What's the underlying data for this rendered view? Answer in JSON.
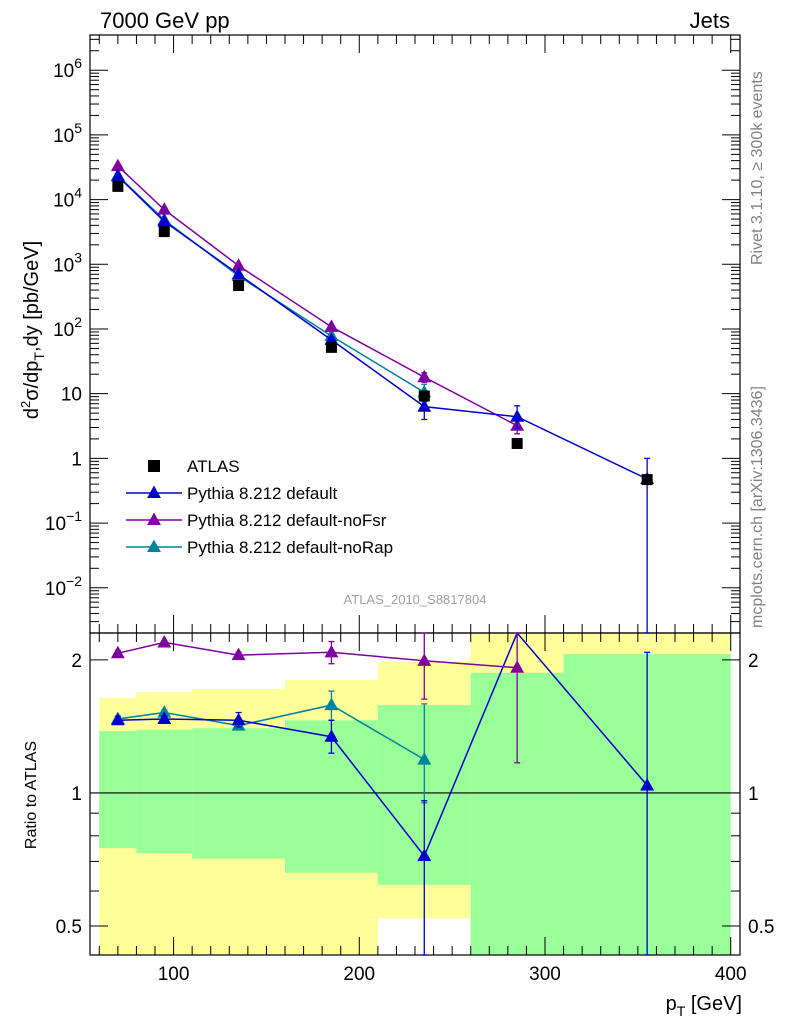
{
  "header": {
    "left": "7000 GeV pp",
    "right": "Jets"
  },
  "side_labels": {
    "rivet": "Rivet 3.1.10, ≥ 300k events",
    "mcplots": "mcplots.cern.ch [arXiv:1306.3436]"
  },
  "analysis_id": "ATLAS_2010_S8817804",
  "colors": {
    "atlas": "#000000",
    "default": "#0000cc",
    "noFsr": "#7f00a0",
    "noRap": "#00829b",
    "band_inner": "#99ff99",
    "band_outer": "#ffff99"
  },
  "chart_data": [
    {
      "type": "line",
      "panel": "main",
      "ylabel_parts": {
        "base": "d",
        "sup2": "2",
        "sigma": "σ/dp",
        "subT": "T",
        "rest": ",dy [pb/GeV]"
      },
      "yscale": "log",
      "ylim": [
        0.002,
        3500000
      ],
      "xlim": [
        55,
        405
      ],
      "y_tick_labels": [
        {
          "value": 0.01,
          "mantissa": "10",
          "exp": "−2"
        },
        {
          "value": 0.1,
          "mantissa": "10",
          "exp": "−1"
        },
        {
          "value": 1,
          "mantissa": "1",
          "exp": ""
        },
        {
          "value": 10,
          "mantissa": "10",
          "exp": ""
        },
        {
          "value": 100,
          "mantissa": "10",
          "exp": "2"
        },
        {
          "value": 1000,
          "mantissa": "10",
          "exp": "3"
        },
        {
          "value": 10000,
          "mantissa": "10",
          "exp": "4"
        },
        {
          "value": 100000,
          "mantissa": "10",
          "exp": "5"
        },
        {
          "value": 1000000,
          "mantissa": "10",
          "exp": "6"
        }
      ],
      "legend_position": "bottom-left",
      "series": [
        {
          "name": "ATLAS",
          "key": "atlas",
          "marker": "square",
          "x": [
            70,
            95,
            135,
            185,
            235,
            285,
            355
          ],
          "y": [
            16000,
            3200,
            470,
            52,
            9.2,
            1.7,
            0.47
          ]
        },
        {
          "name": "Pythia 8.212 default",
          "key": "default",
          "marker": "triangle",
          "x": [
            70,
            95,
            135,
            185,
            235,
            285,
            355
          ],
          "y": [
            23000,
            4600,
            700,
            68,
            6.3,
            4.4,
            0.48
          ],
          "err_low": [
            21000,
            4300,
            660,
            63,
            4.0,
            2.9,
            0.002
          ],
          "err_high": [
            25000,
            4900,
            740,
            73,
            9.0,
            6.5,
            1.0
          ]
        },
        {
          "name": "Pythia 8.212 default-noFsr",
          "key": "noFsr",
          "marker": "triangle",
          "x": [
            70,
            95,
            135,
            185,
            235,
            285
          ],
          "y": [
            33000,
            7000,
            950,
            108,
            18,
            3.2
          ],
          "err_low": [
            32000,
            6800,
            920,
            102,
            15,
            2.4
          ],
          "err_high": [
            34000,
            7200,
            980,
            114,
            21,
            4.1
          ]
        },
        {
          "name": "Pythia 8.212 default-noRap",
          "key": "noRap",
          "marker": "triangle",
          "x": [
            70,
            95,
            135,
            185,
            235
          ],
          "y": [
            23500,
            4850,
            660,
            78,
            10.5
          ],
          "err_low": [
            22500,
            4600,
            620,
            72,
            7.5
          ],
          "err_high": [
            24500,
            5100,
            700,
            84,
            14
          ]
        }
      ]
    },
    {
      "type": "line",
      "panel": "ratio",
      "ylabel": "Ratio to ATLAS",
      "yscale": "log",
      "ylim": [
        0.43,
        2.3
      ],
      "xlim": [
        55,
        405
      ],
      "xlabel_parts": {
        "base": "p",
        "sub": "T",
        "rest": " [GeV]"
      },
      "x_ticks": [
        100,
        200,
        300,
        400
      ],
      "y_tick_labels": [
        {
          "value": 0.5,
          "label": "0.5"
        },
        {
          "value": 1,
          "label": "1"
        },
        {
          "value": 2,
          "label": "2"
        }
      ],
      "bands": {
        "bins": [
          [
            60,
            80
          ],
          [
            80,
            110
          ],
          [
            110,
            160
          ],
          [
            160,
            210
          ],
          [
            210,
            260
          ],
          [
            260,
            310
          ],
          [
            310,
            400
          ]
        ],
        "inner_low": [
          0.75,
          0.73,
          0.71,
          0.66,
          0.62,
          0.41,
          0.41
        ],
        "inner_high": [
          1.38,
          1.39,
          1.4,
          1.46,
          1.58,
          1.87,
          2.06
        ],
        "outer_low": [
          0.36,
          0.36,
          0.36,
          0.36,
          0.52,
          0.36,
          0.36
        ],
        "outer_high": [
          1.64,
          1.69,
          1.72,
          1.8,
          1.98,
          2.45,
          2.45
        ]
      },
      "series": [
        {
          "name": "Pythia 8.212 default",
          "key": "default",
          "x": [
            70,
            95,
            135,
            185,
            235,
            285,
            355
          ],
          "y": [
            1.46,
            1.47,
            1.46,
            1.34,
            0.72,
            2.6,
            1.04
          ],
          "err_low": [
            1.43,
            1.45,
            1.41,
            1.23,
            0.38,
            2.6,
            0.3
          ],
          "err_high": [
            1.49,
            1.49,
            1.52,
            1.46,
            0.96,
            2.6,
            2.08
          ]
        },
        {
          "name": "Pythia 8.212 default-noFsr",
          "key": "noFsr",
          "x": [
            70,
            95,
            135,
            185,
            235,
            285
          ],
          "y": [
            2.07,
            2.19,
            2.05,
            2.08,
            1.99,
            1.92
          ],
          "err_low": [
            2.04,
            2.17,
            2.03,
            1.96,
            1.63,
            1.17
          ],
          "err_high": [
            2.1,
            2.21,
            2.08,
            2.2,
            2.38,
            2.6
          ]
        },
        {
          "name": "Pythia 8.212 default-noRap",
          "key": "noRap",
          "x": [
            70,
            95,
            135,
            185,
            235
          ],
          "y": [
            1.47,
            1.52,
            1.42,
            1.58,
            1.19
          ],
          "err_low": [
            1.45,
            1.5,
            1.39,
            1.46,
            0.95
          ],
          "err_high": [
            1.49,
            1.54,
            1.45,
            1.7,
            1.59
          ]
        }
      ]
    }
  ]
}
